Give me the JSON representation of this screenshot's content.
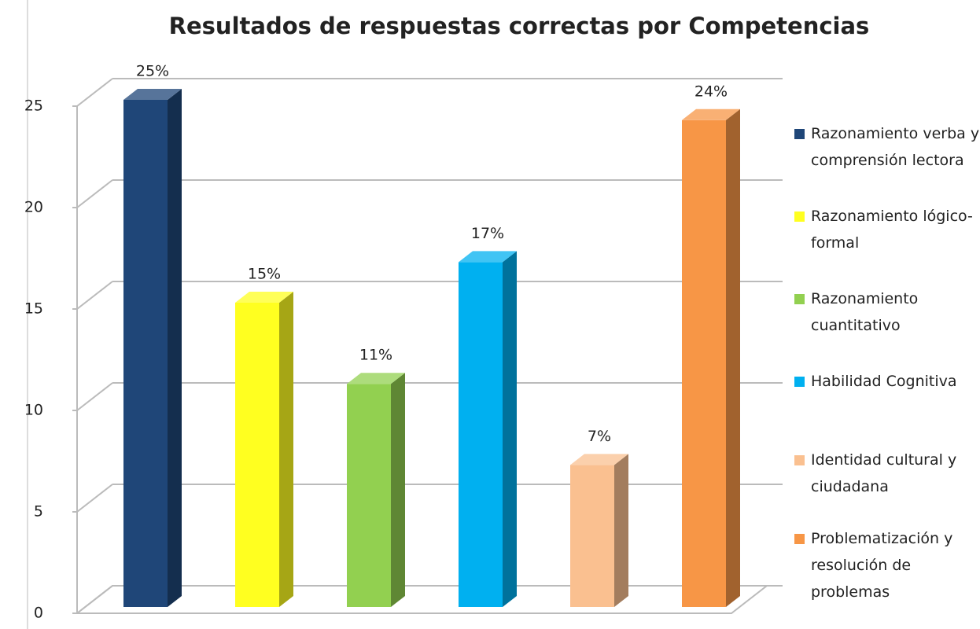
{
  "chart_data": {
    "type": "bar3d",
    "title": "Resultados de respuestas correctas por Competencias",
    "categories": [
      "Razonamiento verba y comprensión lectora",
      "Razonamiento lógico-formal",
      "Razonamiento cuantitativo",
      "Habilidad Cognitiva",
      "Identidad cultural y ciudadana",
      "Problematización y resolución de problemas"
    ],
    "values": [
      25,
      15,
      11,
      17,
      7,
      24
    ],
    "value_labels": [
      "25%",
      "15%",
      "11%",
      "17%",
      "7%",
      "24%"
    ],
    "colors": [
      "#1f4678",
      "#ffff20",
      "#92d050",
      "#00b0f0",
      "#fac090",
      "#f79646"
    ],
    "ylim": [
      0,
      25
    ],
    "yticks": [
      0,
      5,
      10,
      15,
      20,
      25
    ],
    "grid": true,
    "legend": "right"
  }
}
